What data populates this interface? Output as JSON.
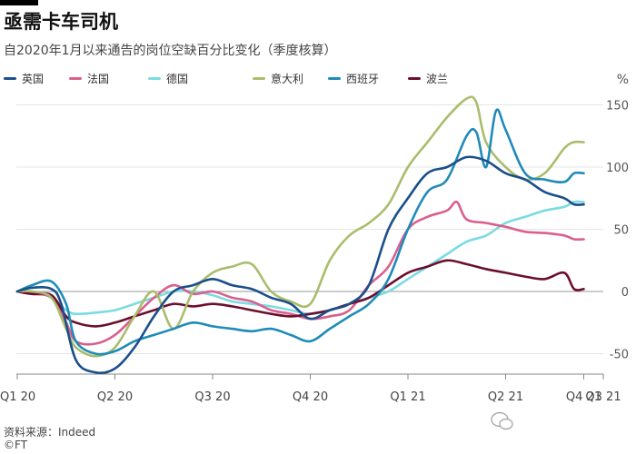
{
  "header": {
    "title": "亟需卡车司机",
    "subtitle": "自2020年1月以来通告的岗位空缺百分比变化（季度核算）"
  },
  "footer": {
    "source": "资料来源：Indeed",
    "credit": "©FT"
  },
  "chart_data": {
    "type": "line",
    "title": "亟需卡车司机",
    "subtitle": "自2020年1月以来通告的岗位空缺百分比变化（季度核算）",
    "xlabel": "",
    "ylabel": "%",
    "unit_label": "%",
    "x_ticks": [
      "Q1 20",
      "Q2 20",
      "Q3 20",
      "Q4 20",
      "Q1 21",
      "Q2 21",
      "Q3 21",
      "Q4 21"
    ],
    "ylim": [
      -65,
      160
    ],
    "y_ticks": [
      150,
      100,
      50,
      0,
      -50
    ],
    "y_tick_labels": [
      "150",
      "100",
      "50",
      "0",
      "-50"
    ],
    "grid": true,
    "legend_position": "top",
    "series": [
      {
        "name": "英国",
        "color": "#1a4f8b",
        "points": [
          [
            0,
            0
          ],
          [
            0.15,
            3
          ],
          [
            0.35,
            2
          ],
          [
            0.45,
            -10
          ],
          [
            0.6,
            -55
          ],
          [
            0.8,
            -65
          ],
          [
            1.0,
            -62
          ],
          [
            1.2,
            -45
          ],
          [
            1.4,
            -20
          ],
          [
            1.6,
            0
          ],
          [
            1.8,
            5
          ],
          [
            2.0,
            10
          ],
          [
            2.2,
            5
          ],
          [
            2.4,
            2
          ],
          [
            2.6,
            -5
          ],
          [
            2.8,
            -10
          ],
          [
            3.0,
            -22
          ],
          [
            3.2,
            -15
          ],
          [
            3.4,
            -10
          ],
          [
            3.6,
            5
          ],
          [
            3.8,
            50
          ],
          [
            4.0,
            75
          ],
          [
            4.2,
            95
          ],
          [
            4.4,
            100
          ],
          [
            4.6,
            108
          ],
          [
            4.8,
            105
          ],
          [
            5.0,
            95
          ],
          [
            5.2,
            90
          ],
          [
            5.4,
            80
          ],
          [
            5.6,
            75
          ],
          [
            5.7,
            70
          ],
          [
            5.8,
            70
          ]
        ]
      },
      {
        "name": "法国",
        "color": "#db5f8e",
        "points": [
          [
            0,
            0
          ],
          [
            0.15,
            -2
          ],
          [
            0.35,
            -5
          ],
          [
            0.5,
            -25
          ],
          [
            0.6,
            -40
          ],
          [
            0.8,
            -42
          ],
          [
            1.0,
            -35
          ],
          [
            1.2,
            -20
          ],
          [
            1.4,
            -5
          ],
          [
            1.6,
            5
          ],
          [
            1.8,
            -2
          ],
          [
            2.0,
            0
          ],
          [
            2.2,
            -5
          ],
          [
            2.4,
            -8
          ],
          [
            2.6,
            -15
          ],
          [
            2.8,
            -18
          ],
          [
            3.0,
            -22
          ],
          [
            3.2,
            -20
          ],
          [
            3.4,
            -15
          ],
          [
            3.6,
            5
          ],
          [
            3.8,
            20
          ],
          [
            4.0,
            50
          ],
          [
            4.2,
            60
          ],
          [
            4.4,
            65
          ],
          [
            4.5,
            72
          ],
          [
            4.6,
            58
          ],
          [
            4.8,
            55
          ],
          [
            5.0,
            52
          ],
          [
            5.2,
            48
          ],
          [
            5.4,
            47
          ],
          [
            5.6,
            45
          ],
          [
            5.7,
            42
          ],
          [
            5.8,
            42
          ]
        ]
      },
      {
        "name": "德国",
        "color": "#7adbe2",
        "points": [
          [
            0,
            0
          ],
          [
            0.15,
            0
          ],
          [
            0.35,
            -5
          ],
          [
            0.5,
            -15
          ],
          [
            0.6,
            -18
          ],
          [
            0.8,
            -17
          ],
          [
            1.0,
            -15
          ],
          [
            1.2,
            -10
          ],
          [
            1.4,
            -5
          ],
          [
            1.6,
            0
          ],
          [
            1.8,
            0
          ],
          [
            2.0,
            -3
          ],
          [
            2.2,
            -8
          ],
          [
            2.4,
            -10
          ],
          [
            2.6,
            -12
          ],
          [
            2.8,
            -15
          ],
          [
            3.0,
            -18
          ],
          [
            3.2,
            -15
          ],
          [
            3.4,
            -10
          ],
          [
            3.6,
            -5
          ],
          [
            3.8,
            0
          ],
          [
            4.0,
            10
          ],
          [
            4.2,
            20
          ],
          [
            4.4,
            30
          ],
          [
            4.6,
            40
          ],
          [
            4.8,
            45
          ],
          [
            5.0,
            55
          ],
          [
            5.2,
            60
          ],
          [
            5.4,
            65
          ],
          [
            5.6,
            68
          ],
          [
            5.7,
            72
          ],
          [
            5.8,
            72
          ]
        ]
      },
      {
        "name": "意大利",
        "color": "#a9bd6c",
        "points": [
          [
            0,
            0
          ],
          [
            0.15,
            0
          ],
          [
            0.35,
            -5
          ],
          [
            0.5,
            -30
          ],
          [
            0.6,
            -45
          ],
          [
            0.8,
            -52
          ],
          [
            1.0,
            -45
          ],
          [
            1.2,
            -20
          ],
          [
            1.4,
            0
          ],
          [
            1.6,
            -30
          ],
          [
            1.8,
            0
          ],
          [
            2.0,
            15
          ],
          [
            2.2,
            20
          ],
          [
            2.4,
            22
          ],
          [
            2.6,
            0
          ],
          [
            2.8,
            -8
          ],
          [
            3.0,
            -10
          ],
          [
            3.2,
            25
          ],
          [
            3.4,
            45
          ],
          [
            3.6,
            55
          ],
          [
            3.8,
            70
          ],
          [
            4.0,
            100
          ],
          [
            4.2,
            120
          ],
          [
            4.4,
            140
          ],
          [
            4.6,
            155
          ],
          [
            4.7,
            152
          ],
          [
            4.8,
            120
          ],
          [
            5.0,
            100
          ],
          [
            5.2,
            90
          ],
          [
            5.4,
            95
          ],
          [
            5.6,
            115
          ],
          [
            5.7,
            120
          ],
          [
            5.8,
            120
          ]
        ]
      },
      {
        "name": "西班牙",
        "color": "#1f8bb8",
        "points": [
          [
            0,
            0
          ],
          [
            0.15,
            5
          ],
          [
            0.35,
            8
          ],
          [
            0.5,
            -10
          ],
          [
            0.6,
            -40
          ],
          [
            0.8,
            -50
          ],
          [
            1.0,
            -48
          ],
          [
            1.2,
            -40
          ],
          [
            1.4,
            -35
          ],
          [
            1.6,
            -30
          ],
          [
            1.8,
            -25
          ],
          [
            2.0,
            -28
          ],
          [
            2.2,
            -30
          ],
          [
            2.4,
            -32
          ],
          [
            2.6,
            -30
          ],
          [
            2.8,
            -35
          ],
          [
            3.0,
            -40
          ],
          [
            3.2,
            -30
          ],
          [
            3.4,
            -20
          ],
          [
            3.6,
            -10
          ],
          [
            3.8,
            10
          ],
          [
            4.0,
            50
          ],
          [
            4.2,
            80
          ],
          [
            4.4,
            90
          ],
          [
            4.6,
            125
          ],
          [
            4.7,
            128
          ],
          [
            4.8,
            100
          ],
          [
            4.9,
            145
          ],
          [
            5.0,
            130
          ],
          [
            5.2,
            95
          ],
          [
            5.4,
            90
          ],
          [
            5.6,
            88
          ],
          [
            5.7,
            95
          ],
          [
            5.8,
            95
          ]
        ]
      },
      {
        "name": "波兰",
        "color": "#6b0f2e",
        "points": [
          [
            0,
            0
          ],
          [
            0.15,
            -2
          ],
          [
            0.35,
            -3
          ],
          [
            0.5,
            -20
          ],
          [
            0.6,
            -25
          ],
          [
            0.8,
            -28
          ],
          [
            1.0,
            -25
          ],
          [
            1.2,
            -20
          ],
          [
            1.4,
            -15
          ],
          [
            1.6,
            -10
          ],
          [
            1.8,
            -12
          ],
          [
            2.0,
            -10
          ],
          [
            2.2,
            -12
          ],
          [
            2.4,
            -15
          ],
          [
            2.6,
            -18
          ],
          [
            2.8,
            -20
          ],
          [
            3.0,
            -18
          ],
          [
            3.2,
            -15
          ],
          [
            3.4,
            -10
          ],
          [
            3.6,
            -5
          ],
          [
            3.8,
            5
          ],
          [
            4.0,
            15
          ],
          [
            4.2,
            20
          ],
          [
            4.4,
            25
          ],
          [
            4.6,
            22
          ],
          [
            4.8,
            18
          ],
          [
            5.0,
            15
          ],
          [
            5.2,
            12
          ],
          [
            5.4,
            10
          ],
          [
            5.6,
            15
          ],
          [
            5.7,
            2
          ],
          [
            5.8,
            2
          ]
        ]
      }
    ]
  }
}
